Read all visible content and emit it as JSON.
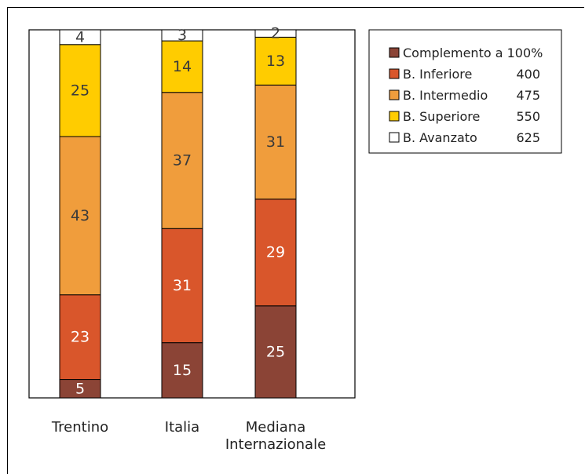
{
  "chart_data": {
    "type": "bar",
    "stacked": true,
    "categories": [
      [
        "Trentino"
      ],
      [
        "Italia"
      ],
      [
        "Mediana",
        "Internazionale"
      ]
    ],
    "series": [
      {
        "name": "Complemento a 100%",
        "color": "#8B4436",
        "label_color": "#ffffff",
        "values": [
          5,
          15,
          25
        ]
      },
      {
        "name": "B. Inferiore",
        "threshold": "400",
        "color": "#D9562B",
        "label_color": "#ffffff",
        "values": [
          23,
          31,
          29
        ]
      },
      {
        "name": "B. Intermedio",
        "threshold": "475",
        "color": "#F09D3C",
        "label_color": "#3a3a3a",
        "values": [
          43,
          37,
          31
        ]
      },
      {
        "name": "B. Superiore",
        "threshold": "550",
        "color": "#FFCC00",
        "label_color": "#3a3a3a",
        "values": [
          25,
          14,
          13
        ]
      },
      {
        "name": "B. Avanzato",
        "threshold": "625",
        "color": "#FFFFFF",
        "label_color": "#3a3a3a",
        "values": [
          4,
          3,
          2
        ]
      }
    ],
    "ylim": [
      0,
      100
    ],
    "title": "",
    "xlabel": "",
    "ylabel": "",
    "grid": false,
    "legend_position": "top-right"
  }
}
